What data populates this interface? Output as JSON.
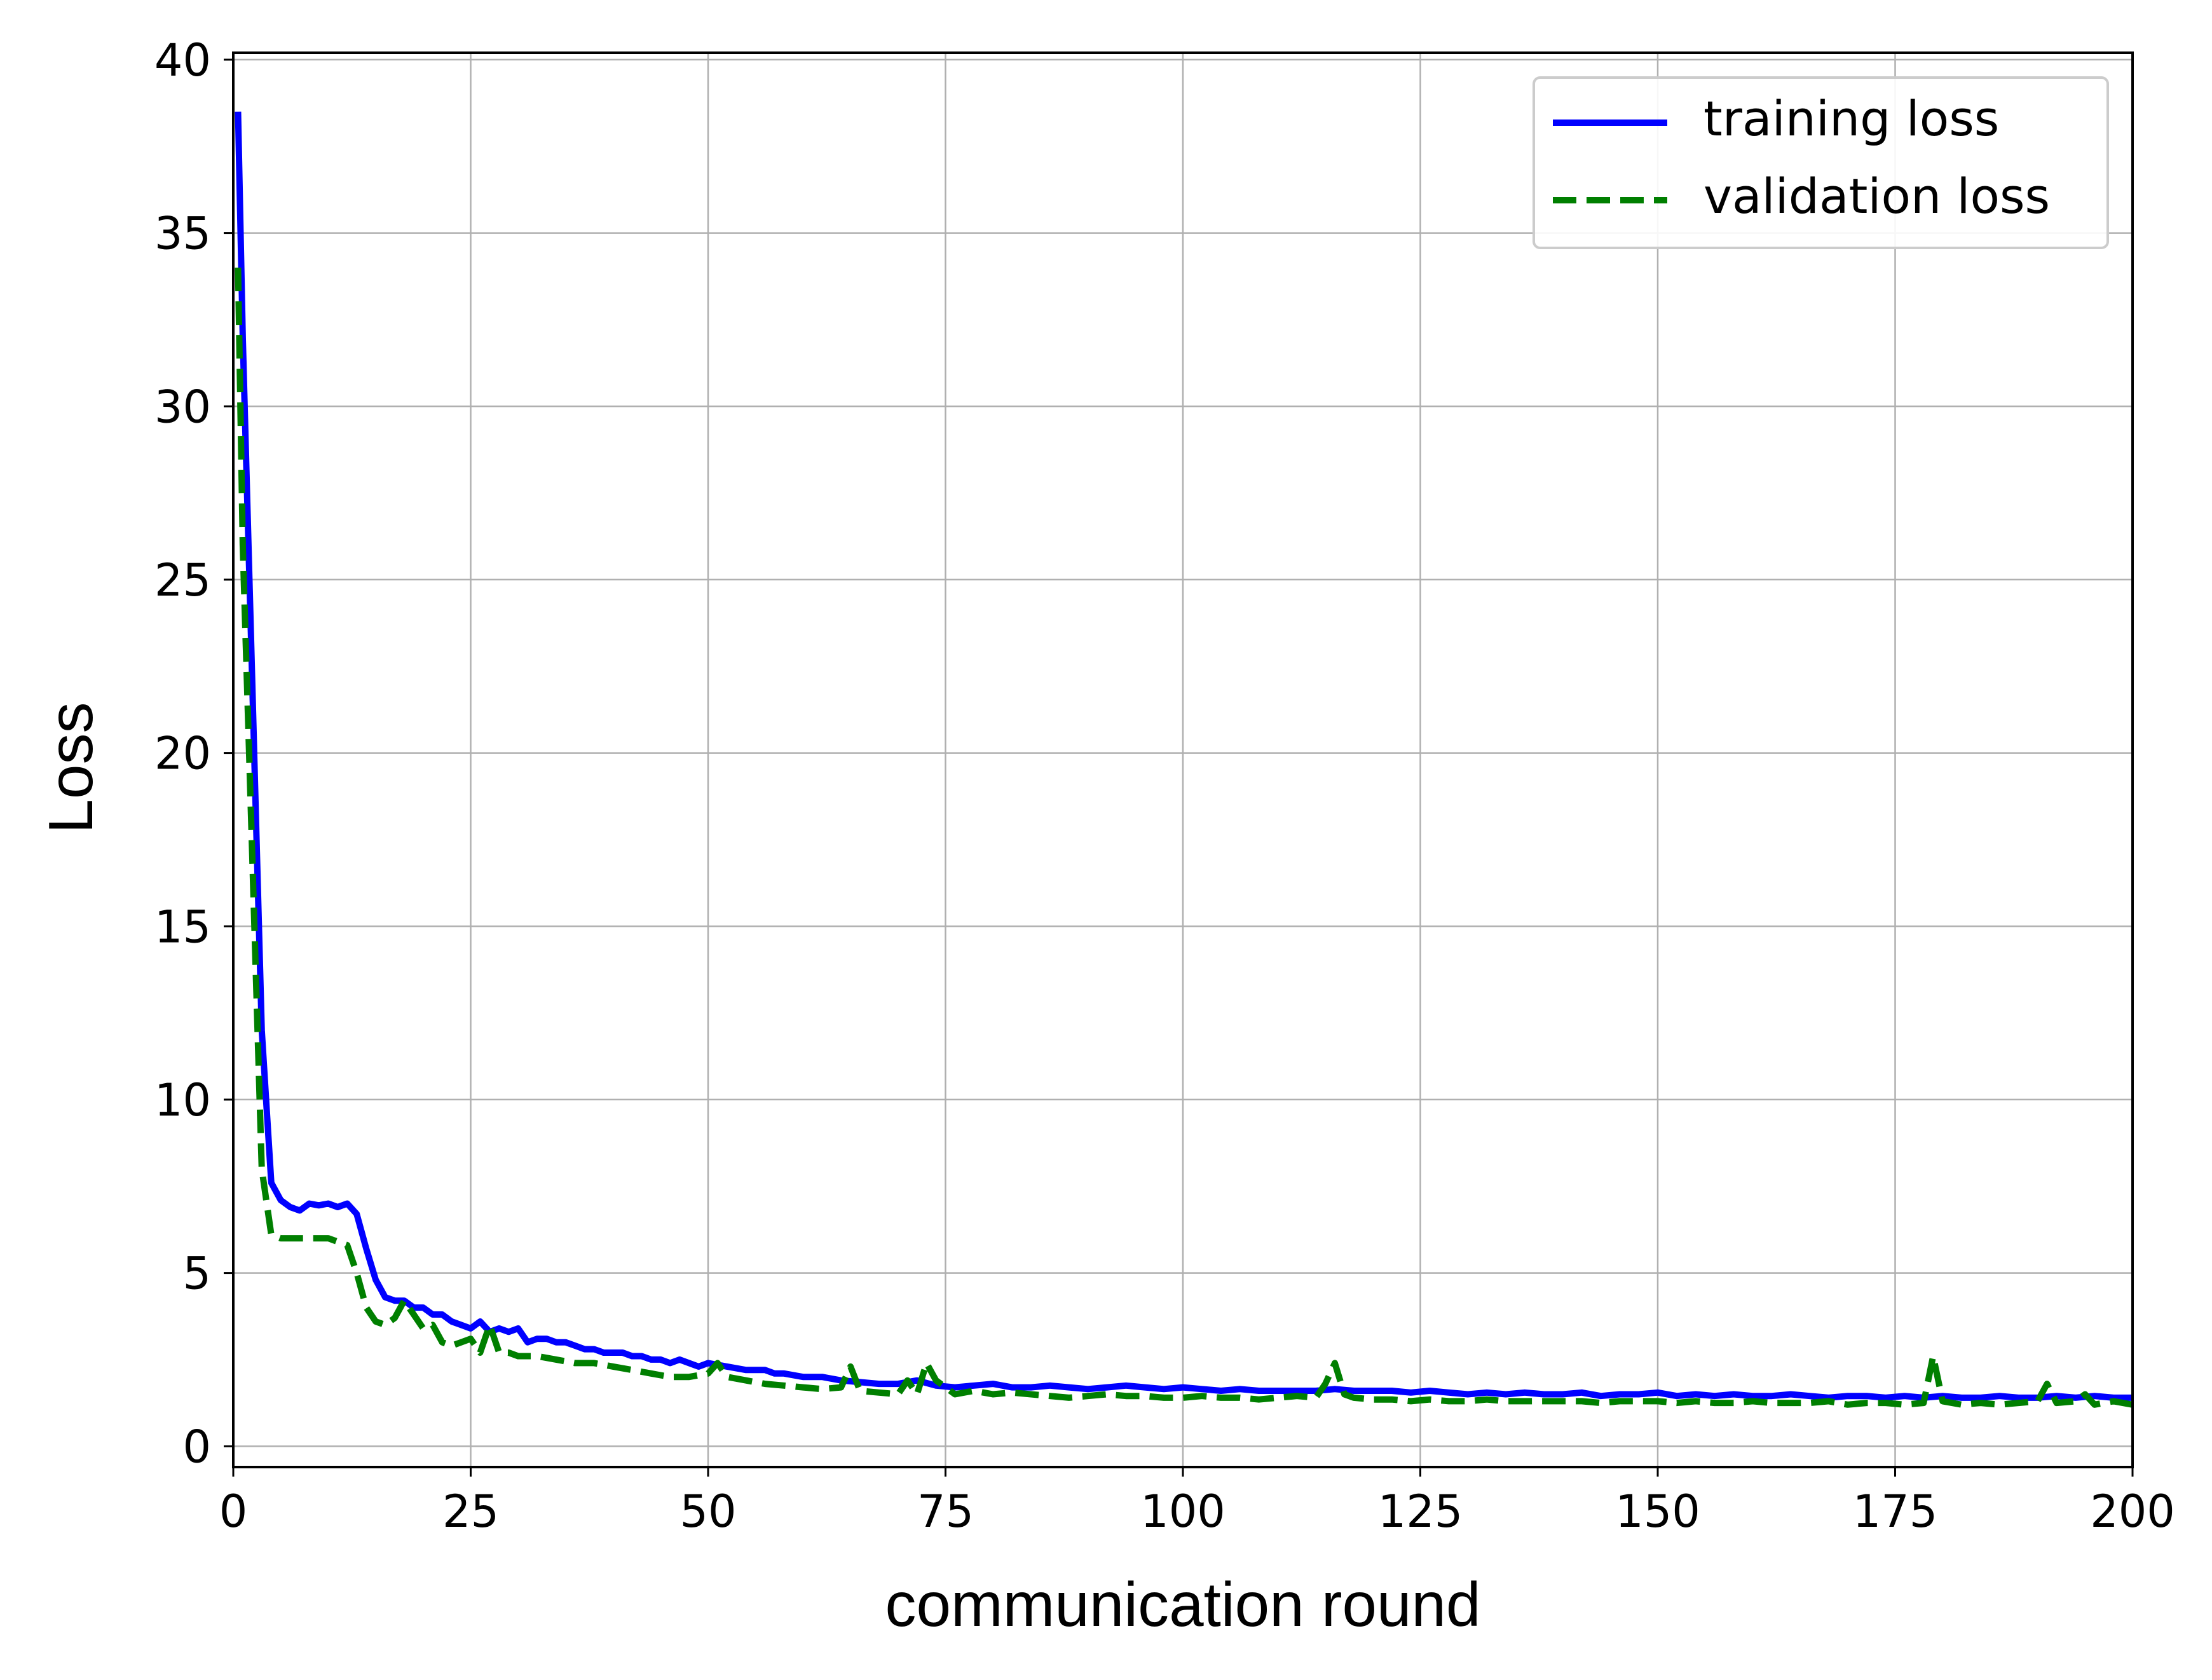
{
  "chart_data": {
    "type": "line",
    "title": "",
    "xlabel": "communication round",
    "ylabel": "Loss",
    "xlim": [
      0,
      200
    ],
    "ylim": [
      -0.6,
      40.2
    ],
    "xticks": [
      0,
      25,
      50,
      75,
      100,
      125,
      150,
      175,
      200
    ],
    "yticks": [
      0,
      5,
      10,
      15,
      20,
      25,
      30,
      35,
      40
    ],
    "grid": true,
    "legend": "top-right",
    "series": [
      {
        "name": "training loss",
        "color": "#0000ff",
        "style": "solid",
        "x": [
          0.5,
          1,
          2,
          3,
          4,
          5,
          6,
          7,
          8,
          9,
          10,
          11,
          12,
          13,
          14,
          15,
          16,
          17,
          18,
          19,
          20,
          21,
          22,
          23,
          24,
          25,
          26,
          27,
          28,
          29,
          30,
          31,
          32,
          33,
          34,
          35,
          36,
          37,
          38,
          39,
          40,
          41,
          42,
          43,
          44,
          45,
          46,
          47,
          48,
          49,
          50,
          52,
          54,
          56,
          57,
          58,
          60,
          62,
          64,
          66,
          68,
          70,
          72,
          74,
          76,
          78,
          80,
          82,
          84,
          86,
          88,
          90,
          92,
          94,
          96,
          98,
          100,
          102,
          104,
          106,
          108,
          110,
          112,
          114,
          116,
          118,
          120,
          122,
          124,
          126,
          128,
          130,
          132,
          134,
          136,
          138,
          140,
          142,
          144,
          146,
          148,
          150,
          152,
          154,
          156,
          158,
          160,
          162,
          164,
          166,
          168,
          170,
          172,
          174,
          176,
          178,
          180,
          182,
          184,
          186,
          188,
          190,
          192,
          194,
          196,
          198,
          200
        ],
        "values": [
          38.5,
          32,
          22,
          12,
          7.6,
          7.1,
          6.9,
          6.8,
          7.0,
          6.95,
          7.0,
          6.9,
          7.0,
          6.7,
          5.7,
          4.8,
          4.3,
          4.2,
          4.2,
          4.0,
          4.0,
          3.8,
          3.8,
          3.6,
          3.5,
          3.4,
          3.6,
          3.3,
          3.4,
          3.3,
          3.4,
          3.0,
          3.1,
          3.1,
          3.0,
          3.0,
          2.9,
          2.8,
          2.8,
          2.7,
          2.7,
          2.7,
          2.6,
          2.6,
          2.5,
          2.5,
          2.4,
          2.5,
          2.4,
          2.3,
          2.4,
          2.3,
          2.2,
          2.2,
          2.1,
          2.1,
          2.0,
          2.0,
          1.9,
          1.85,
          1.8,
          1.8,
          1.9,
          1.75,
          1.7,
          1.75,
          1.8,
          1.7,
          1.7,
          1.75,
          1.7,
          1.65,
          1.7,
          1.75,
          1.7,
          1.65,
          1.7,
          1.65,
          1.6,
          1.65,
          1.6,
          1.6,
          1.6,
          1.6,
          1.65,
          1.6,
          1.6,
          1.6,
          1.55,
          1.6,
          1.55,
          1.5,
          1.55,
          1.5,
          1.55,
          1.5,
          1.5,
          1.55,
          1.45,
          1.5,
          1.5,
          1.55,
          1.45,
          1.5,
          1.45,
          1.5,
          1.45,
          1.45,
          1.5,
          1.45,
          1.4,
          1.45,
          1.45,
          1.4,
          1.45,
          1.4,
          1.45,
          1.4,
          1.4,
          1.45,
          1.4,
          1.4,
          1.45,
          1.4,
          1.45,
          1.4,
          1.4
        ]
      },
      {
        "name": "validation loss",
        "color": "#007f00",
        "style": "dashed",
        "x": [
          0.5,
          1,
          2,
          3,
          4,
          5,
          6,
          7,
          8,
          9,
          10,
          11,
          12,
          13,
          14,
          15,
          16,
          17,
          18,
          19,
          20,
          21,
          22,
          23,
          24,
          25,
          26,
          27,
          28,
          29,
          30,
          32,
          34,
          36,
          38,
          40,
          42,
          44,
          46,
          48,
          50,
          51,
          52,
          54,
          56,
          58,
          60,
          62,
          64,
          65,
          66,
          68,
          70,
          71,
          72,
          73,
          74,
          76,
          78,
          80,
          82,
          84,
          86,
          88,
          90,
          92,
          94,
          96,
          98,
          100,
          102,
          104,
          106,
          108,
          110,
          112,
          114,
          115,
          116,
          117,
          118,
          120,
          122,
          124,
          126,
          128,
          130,
          132,
          134,
          136,
          138,
          140,
          142,
          144,
          146,
          148,
          150,
          152,
          154,
          156,
          158,
          160,
          162,
          164,
          166,
          168,
          170,
          172,
          174,
          176,
          178,
          179,
          180,
          182,
          184,
          186,
          188,
          190,
          191,
          192,
          194,
          195,
          196,
          198,
          200
        ],
        "values": [
          34,
          26,
          17,
          8,
          6.1,
          6.0,
          6.0,
          6.0,
          6.0,
          6.0,
          6.0,
          5.9,
          5.8,
          5.0,
          4.0,
          3.6,
          3.5,
          3.7,
          4.2,
          3.8,
          3.4,
          3.5,
          3.0,
          2.9,
          3.0,
          3.1,
          2.7,
          3.5,
          2.7,
          2.7,
          2.6,
          2.6,
          2.5,
          2.4,
          2.4,
          2.3,
          2.2,
          2.1,
          2.0,
          2.0,
          2.1,
          2.4,
          2.0,
          1.9,
          1.8,
          1.75,
          1.7,
          1.65,
          1.7,
          2.3,
          1.6,
          1.55,
          1.5,
          1.9,
          1.5,
          2.4,
          1.9,
          1.5,
          1.6,
          1.5,
          1.55,
          1.5,
          1.45,
          1.4,
          1.45,
          1.5,
          1.45,
          1.45,
          1.4,
          1.4,
          1.45,
          1.4,
          1.4,
          1.35,
          1.4,
          1.45,
          1.4,
          1.8,
          2.4,
          1.5,
          1.4,
          1.35,
          1.35,
          1.3,
          1.35,
          1.3,
          1.3,
          1.35,
          1.3,
          1.3,
          1.3,
          1.3,
          1.3,
          1.25,
          1.3,
          1.3,
          1.3,
          1.25,
          1.3,
          1.25,
          1.25,
          1.3,
          1.25,
          1.25,
          1.25,
          1.3,
          1.2,
          1.25,
          1.25,
          1.2,
          1.25,
          2.6,
          1.3,
          1.2,
          1.25,
          1.2,
          1.25,
          1.3,
          1.8,
          1.25,
          1.3,
          1.5,
          1.2,
          1.3,
          1.2
        ]
      }
    ]
  }
}
